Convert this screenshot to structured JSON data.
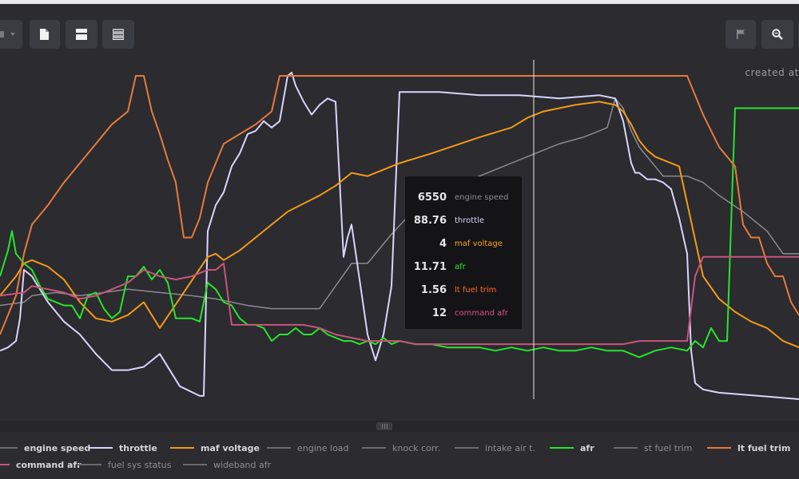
{
  "toolbar": {
    "buttons": [
      {
        "name": "partial-menu-button",
        "icon": "chevron-down-icon"
      },
      {
        "name": "document-button",
        "icon": "document-icon"
      },
      {
        "name": "layout-button",
        "icon": "layout-panels-icon"
      },
      {
        "name": "list-button",
        "icon": "list-icon"
      },
      {
        "name": "flag-button",
        "icon": "flag-icon"
      },
      {
        "name": "zoom-button",
        "icon": "magnifier-icon"
      }
    ]
  },
  "header": {
    "created_text": "created at"
  },
  "tooltip": {
    "rows": [
      {
        "value": "6550",
        "name": "engine speed",
        "color": "#8d8d93"
      },
      {
        "value": "88.76",
        "name": "throttle",
        "color": "#d9d4ff"
      },
      {
        "value": "4",
        "name": "maf voltage",
        "color": "#ffa31a"
      },
      {
        "value": "11.71",
        "name": "afr",
        "color": "#2ef02a"
      },
      {
        "value": "1.56",
        "name": "lt fuel trim",
        "color": "#ff6a2a"
      },
      {
        "value": "12",
        "name": "command afr",
        "color": "#e0527c"
      }
    ]
  },
  "legend": {
    "row1": [
      {
        "label": "engine speed",
        "color": "#6a6a70",
        "bold": true
      },
      {
        "label": "throttle",
        "color": "#d9d4ff",
        "bold": true
      },
      {
        "label": "maf voltage",
        "color": "#f39a17",
        "bold": true
      },
      {
        "label": "engine load",
        "color": "#6a6a70",
        "bold": false
      },
      {
        "label": "knock corr.",
        "color": "#6a6a70",
        "bold": false
      },
      {
        "label": "intake air t.",
        "color": "#6a6a70",
        "bold": false
      },
      {
        "label": "afr",
        "color": "#27e52a",
        "bold": true
      },
      {
        "label": "st fuel trim",
        "color": "#6a6a70",
        "bold": false
      },
      {
        "label": "lt fuel trim",
        "color": "#e87a3a",
        "bold": true
      }
    ],
    "row2": [
      {
        "label": "command afr",
        "color": "#c8557a",
        "bold": true
      },
      {
        "label": "fuel sys status",
        "color": "#6a6a70",
        "bold": false
      },
      {
        "label": "wideband afr",
        "color": "#6a6a70",
        "bold": false
      }
    ]
  },
  "chart_data": {
    "type": "line",
    "title": "",
    "xlabel": "",
    "ylabel": "",
    "x_range": [
      0,
      100
    ],
    "y_range": [
      0,
      100
    ],
    "cursor_x": 66.8,
    "series": [
      {
        "name": "engine speed",
        "color": "#8a8a90",
        "width": 1.5,
        "x": [
          0,
          3,
          4,
          7,
          10,
          13,
          16,
          20,
          24,
          27,
          31,
          34,
          36,
          40,
          44,
          46,
          49,
          52,
          55,
          57,
          60,
          63,
          65,
          67,
          70,
          73,
          75,
          76,
          77,
          78,
          79,
          80,
          81,
          83,
          86,
          88,
          90,
          93,
          96,
          98,
          100
        ],
        "y": [
          29,
          30,
          32,
          33,
          32,
          33,
          34,
          33,
          32,
          31,
          29,
          28,
          28,
          28,
          42,
          42,
          51,
          59,
          64,
          66,
          69,
          72,
          74,
          76,
          79,
          81,
          83,
          84,
          93,
          90,
          83,
          78,
          75,
          69,
          69,
          67,
          63,
          58,
          52,
          45,
          45
        ]
      },
      {
        "name": "throttle",
        "color": "#d9d4ff",
        "width": 2,
        "x": [
          0,
          1,
          2,
          2.5,
          3,
          4,
          6,
          8,
          10,
          12,
          14,
          16,
          18,
          20,
          22.5,
          25,
          25.5,
          26,
          27,
          28,
          29,
          30,
          31,
          32,
          33,
          34,
          35,
          36,
          36.5,
          37,
          38,
          39,
          40,
          41,
          42,
          43,
          43.5,
          44,
          45,
          46,
          47,
          48,
          49,
          50,
          55,
          60,
          65,
          70,
          75,
          77,
          78,
          79,
          79.5,
          80,
          81,
          82,
          83,
          84,
          85,
          86,
          86.5,
          87,
          88,
          90,
          95,
          100
        ],
        "y": [
          15,
          16,
          18,
          25,
          40,
          38,
          30,
          24,
          20,
          14,
          9,
          9,
          10,
          14,
          4,
          1,
          1,
          52,
          60,
          64,
          72,
          76,
          82,
          83,
          86,
          84,
          86,
          100,
          101,
          97,
          92,
          88,
          91,
          93,
          92,
          44,
          50,
          54,
          37,
          20,
          12,
          20,
          35,
          95,
          95,
          94,
          94,
          93,
          94,
          93,
          86,
          73,
          70,
          70,
          68,
          68,
          67,
          65,
          56,
          45,
          15,
          5,
          3,
          2,
          1,
          0
        ]
      },
      {
        "name": "maf voltage",
        "color": "#f39a17",
        "width": 2,
        "x": [
          0,
          2,
          3,
          4,
          6,
          8,
          10,
          12,
          14,
          16,
          18,
          20,
          26,
          27,
          28,
          30,
          33,
          36,
          40,
          42,
          44,
          46,
          50,
          54,
          60,
          64,
          66,
          68,
          70,
          72,
          75,
          77,
          78,
          79,
          80,
          81,
          82,
          85,
          88,
          90,
          92,
          94,
          96,
          98,
          100
        ],
        "y": [
          32,
          38,
          42,
          43,
          41,
          37,
          30,
          25,
          24,
          26,
          30,
          22,
          44,
          45,
          43,
          46,
          52,
          58,
          63,
          66,
          70,
          69,
          73,
          76,
          81,
          84,
          87,
          89,
          90,
          91,
          92,
          91,
          89,
          85,
          80,
          77,
          75,
          72,
          38,
          31,
          27,
          24,
          22,
          18,
          16
        ]
      },
      {
        "name": "afr",
        "color": "#27e52a",
        "width": 2,
        "x": [
          0,
          1,
          1.5,
          2,
          3,
          4,
          5,
          6,
          7,
          8,
          9,
          10,
          11,
          12,
          13,
          14,
          15,
          16,
          17,
          18,
          19,
          20,
          21,
          22,
          23,
          24,
          25,
          26,
          27,
          28,
          29,
          30,
          31,
          32,
          33,
          34,
          35,
          36,
          37,
          38,
          39,
          40,
          41,
          42,
          43,
          44,
          45,
          46,
          47,
          48,
          49,
          50,
          52,
          54,
          56,
          58,
          60,
          62,
          64,
          66,
          68,
          70,
          72,
          74,
          76,
          78,
          80,
          82,
          84,
          86,
          87,
          88,
          89,
          90,
          91,
          92,
          100
        ],
        "y": [
          38,
          46,
          52,
          45,
          42,
          40,
          35,
          31,
          30,
          29,
          29,
          25,
          32,
          33,
          28,
          25,
          27,
          38,
          38,
          41,
          37,
          40,
          36,
          25,
          25,
          25,
          24,
          36,
          34,
          30,
          29,
          25,
          23,
          23,
          22,
          18,
          20,
          20,
          22,
          20,
          20,
          22,
          20,
          19,
          18,
          18,
          17,
          18,
          17,
          19,
          17,
          18,
          17,
          17,
          16,
          16,
          16,
          15,
          16,
          15,
          16,
          15,
          15,
          16,
          15,
          15,
          13,
          15,
          16,
          15,
          18,
          16,
          22,
          18,
          18,
          90,
          90
        ]
      },
      {
        "name": "lt fuel trim",
        "color": "#e87a3a",
        "width": 2,
        "x": [
          0,
          2,
          3,
          4,
          6,
          8,
          10,
          12,
          14,
          16,
          17,
          18,
          19,
          20,
          21,
          22,
          23,
          24,
          25,
          26,
          27,
          28,
          30,
          32,
          33,
          34,
          35,
          36,
          50,
          60,
          70,
          80,
          85,
          86,
          88,
          90,
          92,
          93,
          94,
          95,
          96,
          97,
          98,
          99,
          100
        ],
        "y": [
          20,
          32,
          45,
          54,
          60,
          67,
          73,
          79,
          85,
          89,
          100,
          100,
          89,
          82,
          74,
          67,
          50,
          50,
          56,
          67,
          73,
          79,
          82,
          85,
          87,
          89,
          100,
          100,
          100,
          100,
          100,
          100,
          100,
          100,
          88,
          78,
          72,
          54,
          50,
          50,
          42,
          38,
          38,
          30,
          26
        ]
      },
      {
        "name": "command afr",
        "color": "#c8557a",
        "width": 2,
        "x": [
          0,
          3,
          4,
          6,
          8,
          10,
          12,
          14,
          16,
          18,
          20,
          22,
          24,
          26,
          27,
          28,
          29,
          30,
          32,
          34,
          36,
          38,
          40,
          42,
          44,
          46,
          48,
          50,
          52,
          54,
          56,
          58,
          60,
          62,
          64,
          66,
          68,
          70,
          72,
          74,
          76,
          78,
          80,
          82,
          84,
          86,
          87,
          88,
          90,
          95,
          100
        ],
        "y": [
          32,
          33,
          35,
          34,
          33,
          31,
          32,
          34,
          36,
          40,
          38,
          37,
          38,
          40,
          40,
          42,
          23,
          23,
          23,
          23,
          23,
          23,
          22,
          20,
          19,
          18,
          18,
          18,
          17,
          17,
          17,
          17,
          17,
          17,
          17,
          17,
          17,
          17,
          17,
          17,
          17,
          17,
          18,
          18,
          18,
          18,
          38,
          44,
          44,
          44,
          44
        ]
      }
    ]
  }
}
